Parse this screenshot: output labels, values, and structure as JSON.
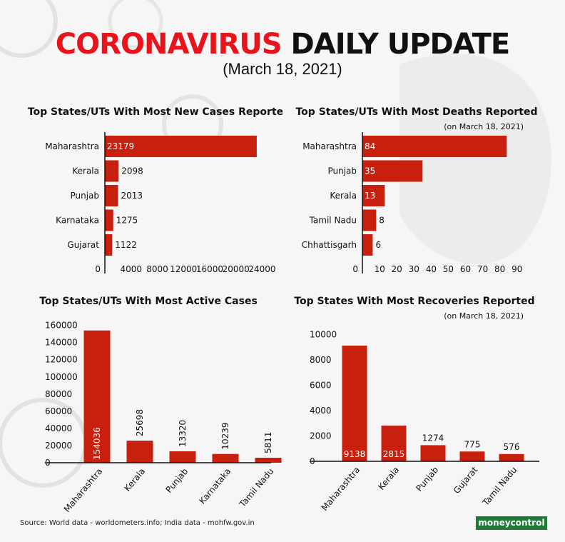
{
  "header": {
    "title_red": "CORONAVIRUS",
    "title_black": "DAILY UPDATE",
    "subtitle": "(March 18, 2021)"
  },
  "colors": {
    "bar": "#c8200f",
    "accent": "#e8141b"
  },
  "chart_data": [
    {
      "type": "bar",
      "orientation": "horizontal",
      "title": "Top States/UTs With Most New Cases Reported",
      "categories": [
        "Maharashtra",
        "Kerala",
        "Punjab",
        "Karnataka",
        "Gujarat"
      ],
      "values": [
        23179,
        2098,
        2013,
        1275,
        1122
      ],
      "xlim": [
        0,
        27000
      ],
      "ticks": [
        0,
        4000,
        8000,
        12000,
        16000,
        20000,
        24000
      ]
    },
    {
      "type": "bar",
      "orientation": "horizontal",
      "title": "Top States/UTs With Most Deaths Reported",
      "note": "(on March 18, 2021)",
      "categories": [
        "Maharashtra",
        "Punjab",
        "Kerala",
        "Tamil Nadu",
        "Chhattisgarh"
      ],
      "values": [
        84,
        35,
        13,
        8,
        6
      ],
      "xlim": [
        0,
        93
      ],
      "ticks": [
        0,
        10,
        20,
        30,
        40,
        50,
        60,
        70,
        80,
        90
      ]
    },
    {
      "type": "bar",
      "orientation": "vertical",
      "title": "Top States/UTs With Most Active Cases",
      "categories": [
        "Maharashtra",
        "Kerala",
        "Punjab",
        "Karnataka",
        "Tamil Nadu"
      ],
      "values": [
        154036,
        25698,
        13320,
        10239,
        5811
      ],
      "ylim": [
        0,
        168000
      ],
      "ticks": [
        0,
        20000,
        40000,
        60000,
        80000,
        100000,
        120000,
        140000,
        160000
      ]
    },
    {
      "type": "bar",
      "orientation": "vertical",
      "title": "Top States With Most Recoveries Reported",
      "note": "(on March 18, 2021)",
      "categories": [
        "Maharashtra",
        "Kerala",
        "Punjab",
        "Gujarat",
        "Tamil Nadu"
      ],
      "values": [
        9138,
        2815,
        1274,
        775,
        576
      ],
      "ylim": [
        0,
        11000
      ],
      "ticks": [
        0,
        2000,
        4000,
        6000,
        8000,
        10000
      ]
    }
  ],
  "footer": {
    "source": "Source: World data - worldometers.info; India data - mohfw.gov.in",
    "logo": "moneycontrol"
  }
}
